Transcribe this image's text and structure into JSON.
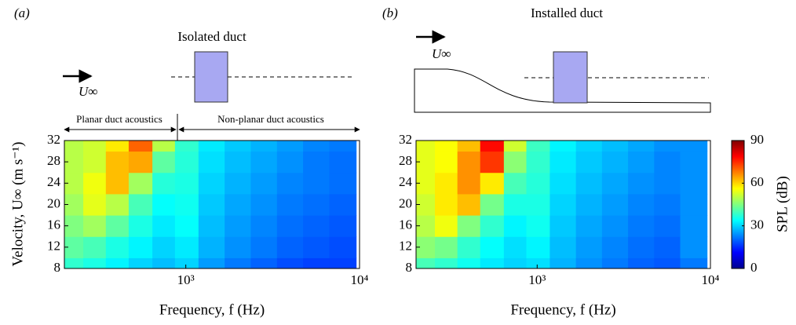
{
  "chart_data": [
    {
      "type": "heatmap",
      "panel_label": "(a)",
      "schematic_title": "Isolated duct",
      "flow_label": "U∞",
      "annotations": [
        "Planar duct acoustics",
        "Non-planar duct acoustics"
      ],
      "x_label": "Frequency, f (Hz)",
      "y_label": "Velocity, U∞ (m s⁻¹)",
      "x": [
        220,
        300,
        400,
        550,
        750,
        1000,
        1400,
        2000,
        2800,
        4000,
        5600,
        8000
      ],
      "y": [
        8,
        12,
        16,
        20,
        24,
        28,
        32
      ],
      "z": [
        [
          38,
          36,
          33,
          30,
          28,
          30,
          25,
          22,
          20,
          18,
          17,
          17
        ],
        [
          42,
          40,
          36,
          33,
          30,
          32,
          27,
          24,
          22,
          20,
          19,
          18
        ],
        [
          45,
          48,
          42,
          36,
          32,
          34,
          28,
          25,
          23,
          21,
          20,
          19
        ],
        [
          48,
          54,
          50,
          40,
          34,
          35,
          29,
          26,
          24,
          22,
          21,
          20
        ],
        [
          50,
          55,
          62,
          48,
          37,
          36,
          30,
          27,
          25,
          23,
          22,
          21
        ],
        [
          50,
          52,
          62,
          64,
          42,
          37,
          31,
          28,
          26,
          24,
          22,
          21
        ],
        [
          50,
          52,
          58,
          70,
          50,
          38,
          32,
          29,
          27,
          25,
          23,
          22
        ]
      ],
      "log_x": true,
      "xlim": [
        200,
        10000
      ],
      "xticks": [
        {
          "value": 1000,
          "label": "10³"
        },
        {
          "value": 10000,
          "label": "10⁴"
        }
      ],
      "ylim": [
        8,
        32
      ],
      "yticks": [
        8,
        12,
        16,
        20,
        24,
        28,
        32
      ]
    },
    {
      "type": "heatmap",
      "panel_label": "(b)",
      "schematic_title": "Installed duct",
      "flow_label": "U∞",
      "x_label": "Frequency, f (Hz)",
      "x": [
        220,
        300,
        400,
        550,
        750,
        1000,
        1400,
        2000,
        2800,
        4000,
        5600,
        8000
      ],
      "y": [
        8,
        12,
        16,
        20,
        24,
        28,
        32
      ],
      "z": [
        [
          40,
          38,
          35,
          32,
          30,
          31,
          27,
          24,
          22,
          20,
          19,
          22
        ],
        [
          46,
          44,
          38,
          34,
          31,
          33,
          28,
          25,
          23,
          21,
          20,
          24
        ],
        [
          50,
          55,
          45,
          38,
          33,
          35,
          29,
          26,
          24,
          22,
          21,
          24
        ],
        [
          52,
          58,
          62,
          44,
          36,
          36,
          30,
          27,
          25,
          23,
          22,
          24
        ],
        [
          54,
          58,
          66,
          58,
          40,
          37,
          31,
          28,
          26,
          24,
          23,
          24
        ],
        [
          54,
          56,
          66,
          74,
          46,
          38,
          32,
          29,
          27,
          25,
          23,
          24
        ],
        [
          54,
          56,
          62,
          78,
          52,
          39,
          33,
          30,
          28,
          26,
          24,
          24
        ]
      ],
      "log_x": true,
      "xlim": [
        200,
        10000
      ],
      "xticks": [
        {
          "value": 1000,
          "label": "10³"
        },
        {
          "value": 10000,
          "label": "10⁴"
        }
      ],
      "ylim": [
        8,
        32
      ],
      "yticks": [
        8,
        12,
        16,
        20,
        24,
        28,
        32
      ],
      "colorbar": {
        "label": "SPL (dB)",
        "zlim": [
          0,
          90
        ],
        "zticks": [
          0,
          30,
          60,
          90
        ]
      }
    }
  ]
}
